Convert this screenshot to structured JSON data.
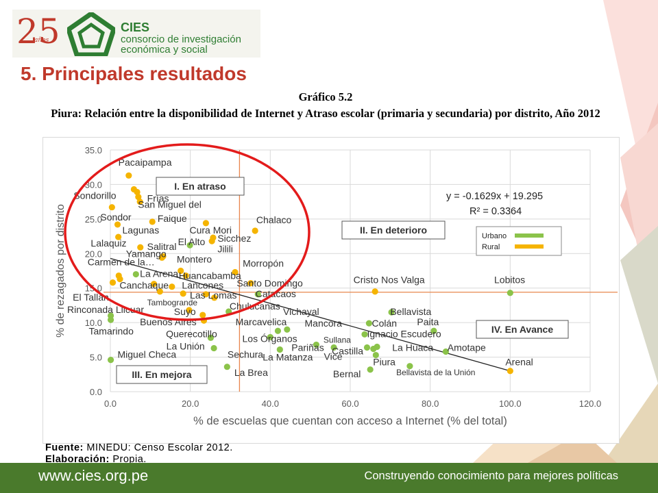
{
  "logo": {
    "number": "25",
    "anos": "años",
    "name": "CIES",
    "line1": "consorcio de investigación",
    "line2": "económica y social"
  },
  "slide": {
    "section_title": "5. Principales resultados",
    "figure_label": "Gráfico 5.2",
    "figure_title": "Piura: Relación entre la disponibilidad de Internet y Atraso escolar (primaria y secundaria) por distrito, Año 2012",
    "source_label": "Fuente:",
    "source_text": "MINEDU: Censo Escolar 2012.",
    "credit_label": "Elaboración:",
    "credit_text": "Propia."
  },
  "footer": {
    "url": "www.cies.org.pe",
    "slogan": "Construyendo conocimiento para mejores políticas"
  },
  "colors": {
    "title_red": "#c0392b",
    "urban": "#8bc34a",
    "rural": "#f5b400",
    "footer_bg": "#4a7a2c",
    "ellipse": "#e31b1b",
    "threshold_line": "#e8864d"
  },
  "chart_data": {
    "type": "scatter",
    "xlabel": "% de escuelas que cuentan con acceso a Internet (% del total)",
    "ylabel": "% de rezagados por distrito",
    "xlim": [
      0,
      120
    ],
    "ylim": [
      0,
      35
    ],
    "xticks": [
      0,
      20,
      40,
      60,
      80,
      100,
      120
    ],
    "xtick_labels": [
      "0.0",
      "20.0",
      "40.0",
      "60.0",
      "80.0",
      "100.0",
      "120.0"
    ],
    "yticks": [
      0,
      5,
      10,
      15,
      20,
      25,
      30,
      35
    ],
    "ytick_labels": [
      "0.0",
      "5.0",
      "10.0",
      "15.0",
      "20.0",
      "25.0",
      "30.0",
      "35.0"
    ],
    "grid": true,
    "legend": {
      "entries": [
        "Urbano",
        "Rural"
      ],
      "placement": "right"
    },
    "equation": "y = -0.1629x + 19.295",
    "r2": "R² = 0.3364",
    "trendline": {
      "slope": -0.1629,
      "intercept": 19.295,
      "x_range": [
        0,
        100
      ]
    },
    "thresholds": {
      "x": 32.3,
      "y": 14.4
    },
    "quadrants": [
      "I. En atraso",
      "II. En deterioro",
      "III. En mejora",
      "IV. En Avance"
    ],
    "series": [
      {
        "name": "Urbano",
        "points": [
          {
            "x": 0.1,
            "y": 10.4
          },
          {
            "x": 0.1,
            "y": 11.0
          },
          {
            "x": 0.1,
            "y": 4.6
          },
          {
            "x": 6.4,
            "y": 17.0
          },
          {
            "x": 19.9,
            "y": 21.2
          },
          {
            "x": 25.1,
            "y": 7.8
          },
          {
            "x": 25.9,
            "y": 6.3
          },
          {
            "x": 29.6,
            "y": 11.6
          },
          {
            "x": 29.2,
            "y": 3.6
          },
          {
            "x": 36.9,
            "y": 14.1
          },
          {
            "x": 40.0,
            "y": 7.9
          },
          {
            "x": 41.9,
            "y": 8.8
          },
          {
            "x": 42.4,
            "y": 6.1
          },
          {
            "x": 44.2,
            "y": 9.0
          },
          {
            "x": 51.5,
            "y": 6.8
          },
          {
            "x": 55.9,
            "y": 6.4
          },
          {
            "x": 63.6,
            "y": 8.3
          },
          {
            "x": 64.2,
            "y": 6.4
          },
          {
            "x": 64.7,
            "y": 9.9
          },
          {
            "x": 65.0,
            "y": 3.2
          },
          {
            "x": 65.8,
            "y": 6.2
          },
          {
            "x": 66.4,
            "y": 5.3
          },
          {
            "x": 66.7,
            "y": 6.5
          },
          {
            "x": 70.3,
            "y": 11.5
          },
          {
            "x": 80.9,
            "y": 8.8
          },
          {
            "x": 83.9,
            "y": 5.8
          },
          {
            "x": 74.9,
            "y": 3.7
          },
          {
            "x": 100.0,
            "y": 14.3
          }
        ]
      },
      {
        "name": "Rural",
        "points": [
          {
            "x": 4.6,
            "y": 31.3
          },
          {
            "x": 0.4,
            "y": 26.7
          },
          {
            "x": 5.9,
            "y": 29.3
          },
          {
            "x": 6.7,
            "y": 28.9
          },
          {
            "x": 7.0,
            "y": 28.2
          },
          {
            "x": 7.4,
            "y": 27.5
          },
          {
            "x": 1.8,
            "y": 24.2
          },
          {
            "x": 10.5,
            "y": 24.6
          },
          {
            "x": 23.9,
            "y": 24.4
          },
          {
            "x": 36.2,
            "y": 23.3
          },
          {
            "x": 2.0,
            "y": 22.4
          },
          {
            "x": 25.4,
            "y": 21.8
          },
          {
            "x": 25.7,
            "y": 22.3
          },
          {
            "x": 7.5,
            "y": 20.9
          },
          {
            "x": 13.2,
            "y": 19.6
          },
          {
            "x": 12.9,
            "y": 19.4
          },
          {
            "x": 17.6,
            "y": 17.5
          },
          {
            "x": 18.9,
            "y": 16.8
          },
          {
            "x": 2.1,
            "y": 16.8
          },
          {
            "x": 2.4,
            "y": 16.3
          },
          {
            "x": 0.6,
            "y": 15.8
          },
          {
            "x": 10.9,
            "y": 15.6
          },
          {
            "x": 15.4,
            "y": 15.2
          },
          {
            "x": 31.2,
            "y": 17.3
          },
          {
            "x": 35.1,
            "y": 15.7
          },
          {
            "x": 12.4,
            "y": 14.5
          },
          {
            "x": 18.2,
            "y": 14.2
          },
          {
            "x": 23.9,
            "y": 14.1
          },
          {
            "x": 26.0,
            "y": 13.6
          },
          {
            "x": 19.7,
            "y": 11.8
          },
          {
            "x": 23.1,
            "y": 11.1
          },
          {
            "x": 23.4,
            "y": 10.3
          },
          {
            "x": 66.2,
            "y": 14.5
          },
          {
            "x": 100.0,
            "y": 3.0
          }
        ]
      }
    ],
    "labels": [
      {
        "text": "Pacaipampa",
        "x": 2.0,
        "y": 32.7
      },
      {
        "text": "Sondorillo",
        "x": -9.2,
        "y": 27.9
      },
      {
        "text": "Frías",
        "x": 9.2,
        "y": 27.5
      },
      {
        "text": "San Miguel del",
        "x": 6.9,
        "y": 26.6
      },
      {
        "text": "Sondor",
        "x": -2.5,
        "y": 24.8
      },
      {
        "text": "Faique",
        "x": 11.8,
        "y": 24.6
      },
      {
        "text": "Chalaco",
        "x": 36.5,
        "y": 24.4
      },
      {
        "text": "Lagunas",
        "x": 3.0,
        "y": 22.9
      },
      {
        "text": "Cura Mori",
        "x": 19.8,
        "y": 22.9
      },
      {
        "text": "Sicchez",
        "x": 26.8,
        "y": 21.7
      },
      {
        "text": "El Alto",
        "x": 16.9,
        "y": 21.2
      },
      {
        "text": "Lalaquiz",
        "x": -4.9,
        "y": 21.0
      },
      {
        "text": "Salitral",
        "x": 9.2,
        "y": 20.5
      },
      {
        "text": "Jilili",
        "x": 26.8,
        "y": 20.2
      },
      {
        "text": "Yamango",
        "x": 3.9,
        "y": 19.5
      },
      {
        "text": "Montero",
        "x": 16.6,
        "y": 18.7
      },
      {
        "text": "Carmen de la…",
        "x": -5.7,
        "y": 18.3
      },
      {
        "text": "Morropón",
        "x": 33.1,
        "y": 18.1
      },
      {
        "text": "La Arena",
        "x": 7.4,
        "y": 16.6
      },
      {
        "text": "Huancabamba",
        "x": 17.1,
        "y": 16.3
      },
      {
        "text": "Santo Domingo",
        "x": 31.6,
        "y": 15.2
      },
      {
        "text": "Cristo Nos Valga",
        "x": 60.8,
        "y": 15.7
      },
      {
        "text": "Lobitos",
        "x": 96.0,
        "y": 15.7
      },
      {
        "text": "Canchaque",
        "x": 2.3,
        "y": 14.9
      },
      {
        "text": "Lancones",
        "x": 17.9,
        "y": 14.9
      },
      {
        "text": "Catacaos",
        "x": 36.3,
        "y": 13.7
      },
      {
        "text": "Las Lomas",
        "x": 19.9,
        "y": 13.5
      },
      {
        "text": "Tambogrande",
        "x": 9.2,
        "y": 12.5
      },
      {
        "text": "El Tallan",
        "x": -9.4,
        "y": 13.2
      },
      {
        "text": "Chulucanas",
        "x": 29.8,
        "y": 11.9
      },
      {
        "text": "Rinconada Llicuar",
        "x": -10.8,
        "y": 11.4
      },
      {
        "text": "Suyo",
        "x": 15.9,
        "y": 11.1
      },
      {
        "text": "Vichayal",
        "x": 43.2,
        "y": 11.1
      },
      {
        "text": "Bellavista",
        "x": 70.0,
        "y": 11.1
      },
      {
        "text": "Buenos Aires",
        "x": 7.4,
        "y": 9.6
      },
      {
        "text": "Marcavelica",
        "x": 31.3,
        "y": 9.6
      },
      {
        "text": "Mancora",
        "x": 48.6,
        "y": 9.4
      },
      {
        "text": "Colán",
        "x": 65.4,
        "y": 9.4
      },
      {
        "text": "Paita",
        "x": 76.7,
        "y": 9.6
      },
      {
        "text": "Tamarindo",
        "x": -5.4,
        "y": 8.3
      },
      {
        "text": "Querecotillo",
        "x": 13.9,
        "y": 7.9
      },
      {
        "text": "Ignacio Escudero",
        "x": 64.2,
        "y": 7.9
      },
      {
        "text": "Los Órganos",
        "x": 33.0,
        "y": 7.2
      },
      {
        "text": "Sullana",
        "x": 53.3,
        "y": 7.1
      },
      {
        "text": "IV. En Avance",
        "x": 94.9,
        "y": 8.5
      },
      {
        "text": "La Unión",
        "x": 14.0,
        "y": 6.1
      },
      {
        "text": "Pariñas",
        "x": 45.3,
        "y": 5.9
      },
      {
        "text": "La Huaca",
        "x": 70.5,
        "y": 5.9
      },
      {
        "text": "Amotape",
        "x": 84.3,
        "y": 5.9
      },
      {
        "text": "Castilla",
        "x": 55.4,
        "y": 5.4
      },
      {
        "text": "Miguel Checa",
        "x": 1.8,
        "y": 4.9
      },
      {
        "text": "Sechura",
        "x": 29.3,
        "y": 4.9
      },
      {
        "text": "La Matanza",
        "x": 38.1,
        "y": 4.5
      },
      {
        "text": "Vice",
        "x": 53.4,
        "y": 4.6
      },
      {
        "text": "Arenal",
        "x": 98.8,
        "y": 3.8
      },
      {
        "text": "Piura",
        "x": 65.7,
        "y": 3.8
      },
      {
        "text": "Bernal",
        "x": 55.7,
        "y": 2.1
      },
      {
        "text": "La Brea",
        "x": 31.0,
        "y": 2.3
      },
      {
        "text": "Bellavista de la Unión",
        "x": 71.5,
        "y": 2.4
      }
    ]
  }
}
